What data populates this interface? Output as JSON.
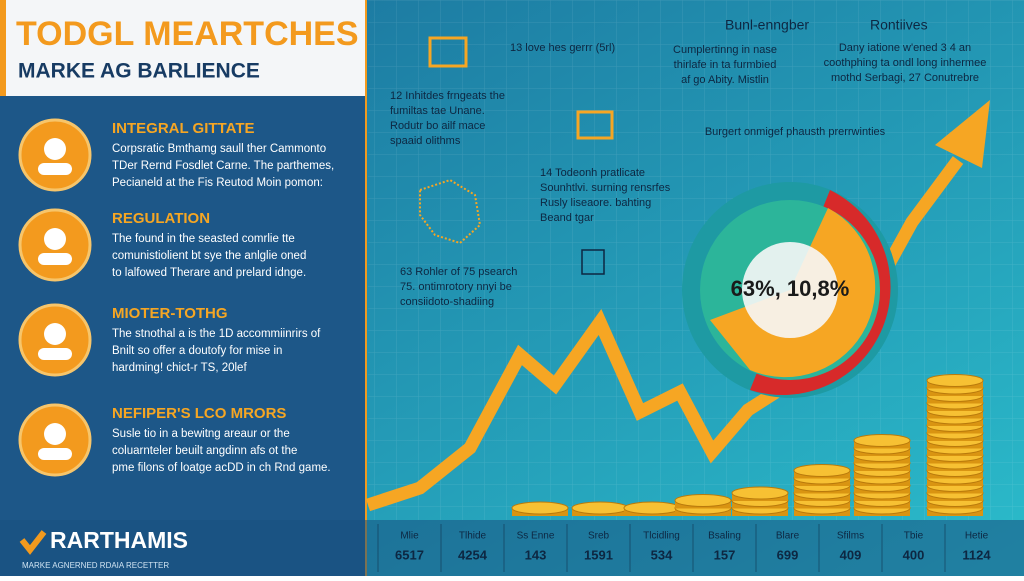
{
  "header": {
    "title": "TODGL MEARTCHES",
    "subtitle": "MARKE AG BARLIENCE"
  },
  "sections": [
    {
      "heading": "INTEGRAL GITTATE",
      "lines": [
        "Corpsratic Bmthamg saull ther Cammonto",
        "TDer Rernd Fosdlet Carne. The parthemes,",
        "Pecianeld at the Fis Reutod Moin pomon:"
      ]
    },
    {
      "heading": "REGULATION",
      "lines": [
        "The found in the seasted comrlie tte",
        "comunistiolient bt sye the anlglie oned",
        "to lalfowed Therare and prelard idnge."
      ]
    },
    {
      "heading": "MIOTER-TOTHG",
      "lines": [
        "The stnothal a is the 1D accommiinrirs of",
        "Bnilt so offer a doutofy for mise in",
        "hardming! chict-r TS, 20lef"
      ]
    },
    {
      "heading": "NEFIPER'S LCO MRORS",
      "lines": [
        "Susle tio in a bewitng areaur or the",
        "coluarnteler beuilt angdinn afs ot the",
        "pme filons of loatge acDD in ch Rnd game."
      ]
    }
  ],
  "logo": {
    "name": "RARTHAMIS",
    "tagline": "MARKE AGNERNED RDAIA RECETTER"
  },
  "column_headers": [
    "Bunl-enngber",
    "Rontiives"
  ],
  "annotations": [
    {
      "lines": [
        "13 love hes gerrr (5rl)"
      ]
    },
    {
      "lines": [
        "Cumplertinng in nase",
        "thirlafe in ta furmbied",
        "af go Abity. Mistlin"
      ]
    },
    {
      "lines": [
        "Dany iatione w'ened 3 4 an",
        "coothphing ta ondl long inhermee",
        "mothd Serbagi, 27 Conutrebre"
      ]
    },
    {
      "lines": [
        "12 Inhitdes frngeats the",
        "fumiltas tae Unane.",
        "Rodutr bo ailf mace",
        "spaaid olithms"
      ]
    },
    {
      "lines": [
        "Burgert onmigef phausth prerrwinties"
      ]
    },
    {
      "lines": [
        "14 Todeonh pratlicate",
        "Sounhtlvi. surning rensrfes",
        "Rusly liseaore. bahting",
        "Beand tgar"
      ]
    },
    {
      "lines": [
        "63 Rohler of 75 psearch",
        "75. ontimrotory nnyi be",
        "consiidoto-shadiing"
      ]
    }
  ],
  "pie_label": "63%, 10,8%",
  "table": {
    "labels": [
      "Mlie",
      "Tlhide",
      "Ss Enne",
      "Sreb",
      "Tlcidling",
      "Bsaling",
      "Blare",
      "Sfilms",
      "Tbie",
      "Hetie"
    ],
    "values": [
      "6517",
      "4254",
      "143",
      "1591",
      "534",
      "157",
      "699",
      "409",
      "400",
      "1124"
    ]
  }
}
